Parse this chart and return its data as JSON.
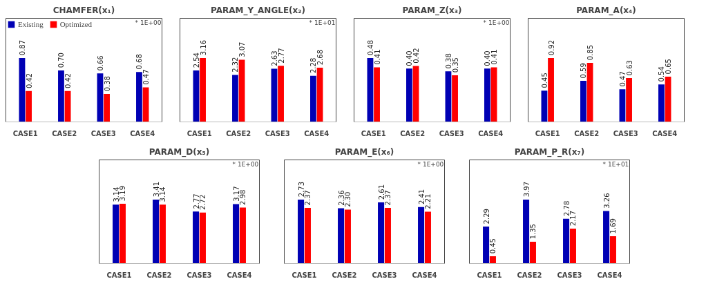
{
  "chart_data": [
    {
      "type": "bar",
      "title": "CHAMFER(x₁)",
      "categories": [
        "CASE1",
        "CASE2",
        "CASE3",
        "CASE4"
      ],
      "legend": "top left",
      "annotations": [
        "* 1E+00"
      ],
      "series": [
        {
          "name": "Existing",
          "color": "#0000b4",
          "values": [
            0.87,
            0.7,
            0.66,
            0.68
          ],
          "value_labels": [
            "0.87",
            "0.70",
            "0.66",
            "0.68"
          ]
        },
        {
          "name": "Optimized",
          "color": "#ff0000",
          "values": [
            0.42,
            0.42,
            0.38,
            0.47
          ],
          "value_labels": [
            "0.42",
            "0.42",
            "0.38",
            "0.47"
          ]
        }
      ]
    },
    {
      "type": "bar",
      "title": "PARAM_Y_ANGLE(x₂)",
      "categories": [
        "CASE1",
        "CASE2",
        "CASE3",
        "CASE4"
      ],
      "annotations": [
        "* 1E+01"
      ],
      "series": [
        {
          "color": "#0000b4",
          "values": [
            2.54,
            2.32,
            2.63,
            2.28
          ],
          "value_labels": [
            "2.54",
            "2.32",
            "2.63",
            "2.28"
          ]
        },
        {
          "color": "#ff0000",
          "values": [
            3.16,
            3.07,
            2.77,
            2.68
          ],
          "value_labels": [
            "3.16",
            "3.07",
            "2.77",
            "2.68"
          ]
        }
      ]
    },
    {
      "type": "bar",
      "title": "PARAM_Z(x₃)",
      "categories": [
        "CASE1",
        "CASE2",
        "CASE3",
        "CASE4"
      ],
      "annotations": [
        "* 1E+00"
      ],
      "series": [
        {
          "color": "#0000b4",
          "values": [
            0.48,
            0.4,
            0.38,
            0.4
          ],
          "value_labels": [
            "0.48",
            "0.40",
            "0.38",
            "0.40"
          ]
        },
        {
          "color": "#ff0000",
          "values": [
            0.41,
            0.42,
            0.35,
            0.41
          ],
          "value_labels": [
            "0.41",
            "0.42",
            "0.35",
            "0.41"
          ]
        }
      ]
    },
    {
      "type": "bar",
      "title": "PARAM_A(x₄)",
      "categories": [
        "CASE1",
        "CASE2",
        "CASE3",
        "CASE4"
      ],
      "series": [
        {
          "color": "#0000b4",
          "values": [
            0.45,
            0.59,
            0.47,
            0.54
          ],
          "value_labels": [
            "0.45",
            "0.59",
            "0.47",
            "0.54"
          ]
        },
        {
          "color": "#ff0000",
          "values": [
            0.92,
            0.85,
            0.63,
            0.65
          ],
          "value_labels": [
            "0.92",
            "0.85",
            "0.63",
            "0.65"
          ]
        }
      ]
    },
    {
      "type": "bar",
      "title": "PARAM_D(x₅)",
      "categories": [
        "CASE1",
        "CASE2",
        "CASE3",
        "CASE4"
      ],
      "annotations": [
        "* 1E+00"
      ],
      "series": [
        {
          "color": "#0000b4",
          "values": [
            3.14,
            3.41,
            2.77,
            3.17
          ],
          "value_labels": [
            "3.14",
            "3.41",
            "2.77",
            "3.17"
          ]
        },
        {
          "color": "#ff0000",
          "values": [
            3.19,
            3.14,
            2.72,
            2.98
          ],
          "value_labels": [
            "3.19",
            "3.14",
            "2.72",
            "2.98"
          ]
        }
      ]
    },
    {
      "type": "bar",
      "title": "PARAM_E(x₆)",
      "categories": [
        "CASE1",
        "CASE2",
        "CASE3",
        "CASE4"
      ],
      "annotations": [
        "* 1E+00"
      ],
      "series": [
        {
          "color": "#0000b4",
          "values": [
            2.73,
            2.36,
            2.61,
            2.41
          ],
          "value_labels": [
            "2.73",
            "2.36",
            "2.61",
            "2.41"
          ]
        },
        {
          "color": "#ff0000",
          "values": [
            2.37,
            2.3,
            2.37,
            2.21
          ],
          "value_labels": [
            "2.37",
            "2.30",
            "2.37",
            "2.21"
          ]
        }
      ]
    },
    {
      "type": "bar",
      "title": "PARAM_P_R(x₇)",
      "categories": [
        "CASE1",
        "CASE2",
        "CASE3",
        "CASE4"
      ],
      "annotations": [
        "* 1E+01"
      ],
      "series": [
        {
          "color": "#0000b4",
          "values": [
            2.29,
            3.97,
            2.78,
            3.26
          ],
          "value_labels": [
            "2.29",
            "3.97",
            "2.78",
            "3.26"
          ]
        },
        {
          "color": "#ff0000",
          "values": [
            0.45,
            1.35,
            2.17,
            1.69
          ],
          "value_labels": [
            "0.45",
            "1.35",
            "2.17",
            "1.69"
          ]
        }
      ]
    }
  ]
}
